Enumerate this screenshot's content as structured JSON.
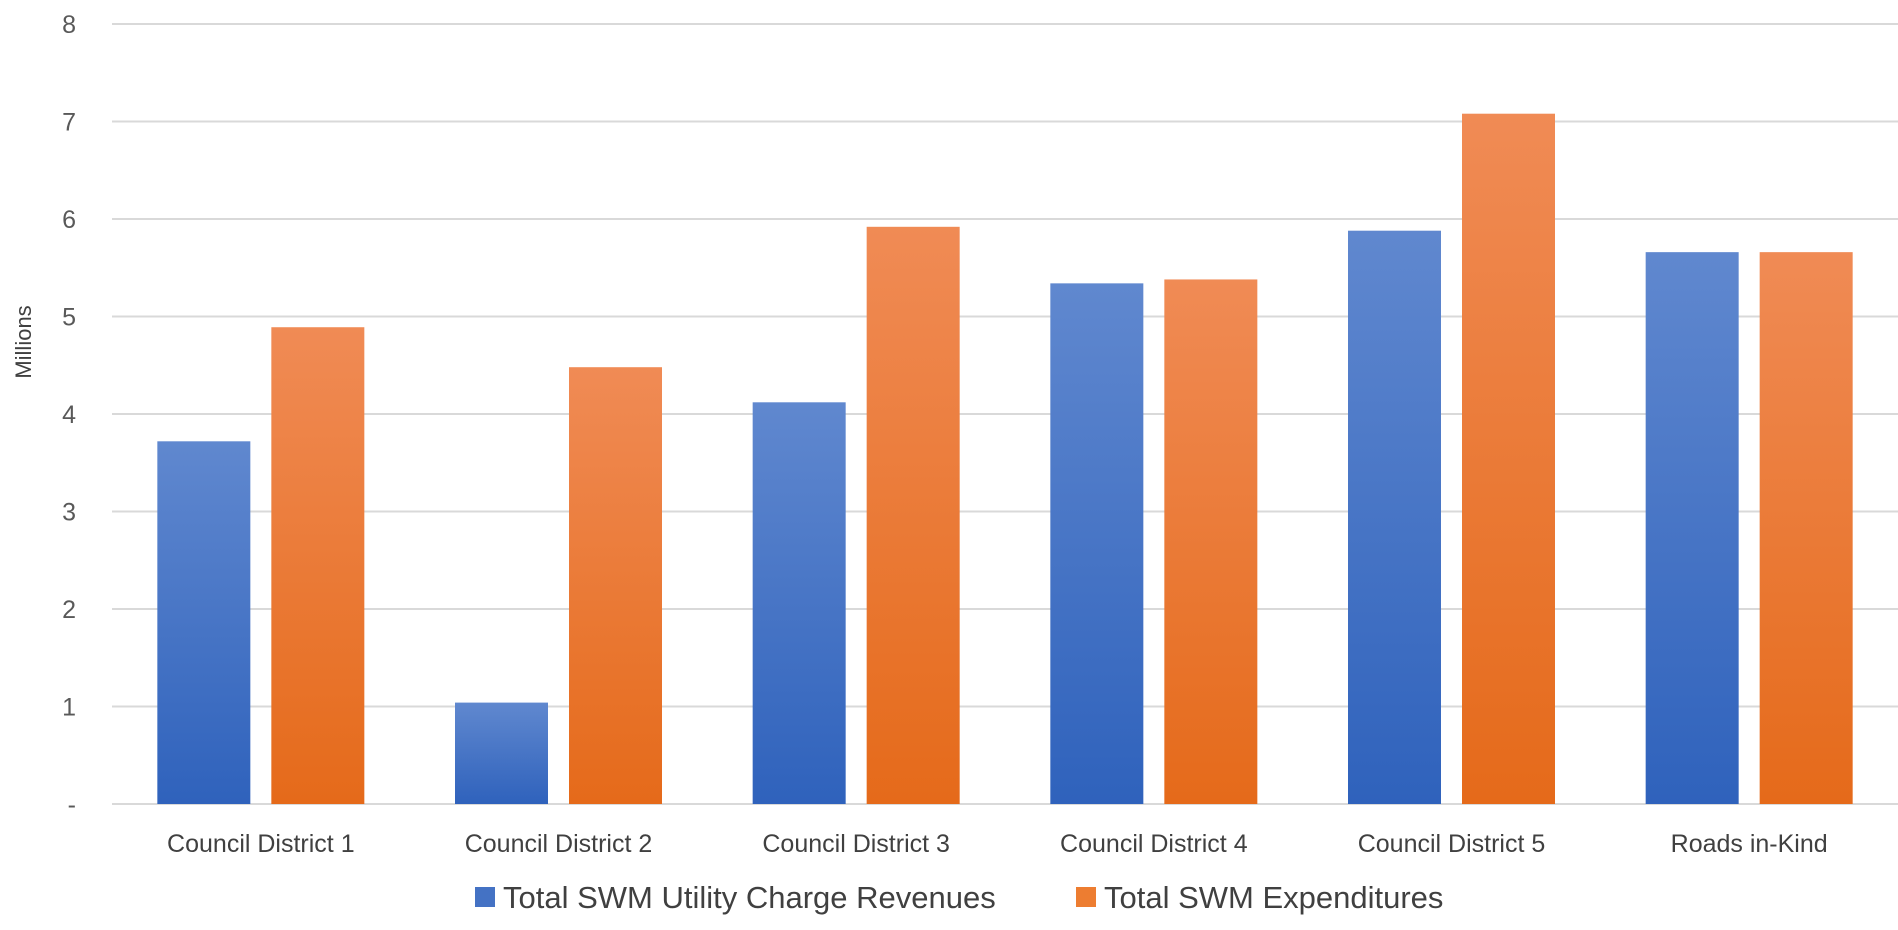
{
  "chart_data": {
    "type": "bar",
    "title": "",
    "xlabel": "",
    "ylabel": "Millions",
    "ylim": [
      0,
      8
    ],
    "y_ticks": [
      "-",
      "1",
      "2",
      "3",
      "4",
      "5",
      "6",
      "7",
      "8"
    ],
    "grid": true,
    "legend_position": "bottom",
    "categories": [
      "Council District 1",
      "Council District 2",
      "Council District 3",
      "Council District 4",
      "Council District 5",
      "Roads in-Kind"
    ],
    "series": [
      {
        "name": "Total SWM Utility Charge Revenues",
        "color": "#4472c4",
        "values": [
          3.72,
          1.04,
          4.12,
          5.34,
          5.88,
          5.66
        ]
      },
      {
        "name": "Total SWM Expenditures",
        "color": "#ed7d31",
        "values": [
          4.89,
          4.48,
          5.92,
          5.38,
          7.08,
          5.66
        ]
      }
    ]
  }
}
